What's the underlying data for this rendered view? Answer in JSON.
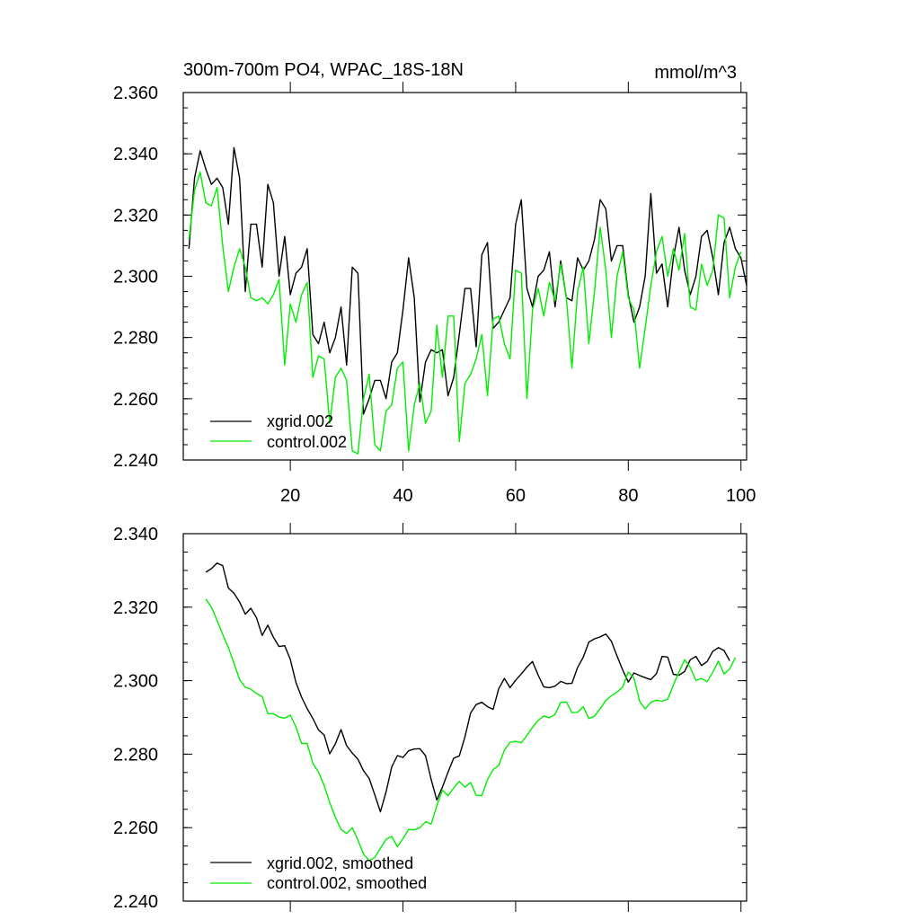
{
  "chart_data": [
    {
      "type": "line",
      "title": "300m-700m PO4, WPAC_18S-18N",
      "units": "mmol/m^3",
      "xlim": [
        1,
        101
      ],
      "ylim": [
        2.24,
        2.36
      ],
      "xticks": [
        20,
        40,
        60,
        80,
        100
      ],
      "yticks": [
        2.24,
        2.26,
        2.28,
        2.3,
        2.32,
        2.34,
        2.36
      ],
      "ytick_labels": [
        "2.240",
        "2.260",
        "2.280",
        "2.300",
        "2.320",
        "2.340",
        "2.360"
      ],
      "xtick_labels": [
        "20",
        "40",
        "60",
        "80",
        "100"
      ],
      "legend_position": "bottom-left",
      "series": [
        {
          "name": "xgrid.002",
          "color": "#000000",
          "x_start": 2,
          "values": [
            2.309,
            2.332,
            2.341,
            2.335,
            2.33,
            2.332,
            2.329,
            2.317,
            2.342,
            2.332,
            2.295,
            2.317,
            2.317,
            2.303,
            2.33,
            2.324,
            2.3,
            2.313,
            2.294,
            2.301,
            2.303,
            2.309,
            2.281,
            2.278,
            2.285,
            2.275,
            2.28,
            2.29,
            2.271,
            2.303,
            2.301,
            2.255,
            2.26,
            2.266,
            2.266,
            2.26,
            2.272,
            2.275,
            2.289,
            2.306,
            2.293,
            2.259,
            2.272,
            2.276,
            2.275,
            2.276,
            2.261,
            2.267,
            2.281,
            2.296,
            2.296,
            2.277,
            2.307,
            2.311,
            2.283,
            2.285,
            2.289,
            2.293,
            2.317,
            2.325,
            2.296,
            2.29,
            2.3,
            2.302,
            2.308,
            2.29,
            2.305,
            2.293,
            2.292,
            2.306,
            2.302,
            2.305,
            2.312,
            2.325,
            2.322,
            2.305,
            2.31,
            2.31,
            2.294,
            2.285,
            2.29,
            2.3,
            2.327,
            2.301,
            2.304,
            2.29,
            2.306,
            2.316,
            2.302,
            2.294,
            2.3,
            2.313,
            2.315,
            2.306,
            2.294,
            2.311,
            2.316,
            2.309,
            2.306,
            2.297
          ]
        },
        {
          "name": "control.002",
          "color": "#00ee00",
          "x_start": 2,
          "values": [
            2.312,
            2.328,
            2.334,
            2.324,
            2.323,
            2.329,
            2.31,
            2.295,
            2.303,
            2.309,
            2.303,
            2.293,
            2.292,
            2.293,
            2.291,
            2.294,
            2.299,
            2.271,
            2.291,
            2.285,
            2.294,
            2.298,
            2.267,
            2.274,
            2.273,
            2.252,
            2.267,
            2.27,
            2.266,
            2.243,
            2.242,
            2.26,
            2.268,
            2.245,
            2.243,
            2.256,
            2.258,
            2.27,
            2.272,
            2.243,
            2.258,
            2.265,
            2.252,
            2.256,
            2.284,
            2.267,
            2.287,
            2.287,
            2.246,
            2.265,
            2.268,
            2.273,
            2.281,
            2.261,
            2.286,
            2.287,
            2.278,
            2.273,
            2.302,
            2.301,
            2.26,
            2.289,
            2.296,
            2.287,
            2.298,
            2.292,
            2.304,
            2.293,
            2.27,
            2.295,
            2.303,
            2.278,
            2.295,
            2.316,
            2.302,
            2.28,
            2.3,
            2.308,
            2.293,
            2.289,
            2.27,
            2.283,
            2.297,
            2.308,
            2.313,
            2.3,
            2.309,
            2.302,
            2.314,
            2.29,
            2.289,
            2.304,
            2.297,
            2.302,
            2.32,
            2.319,
            2.293,
            2.303,
            2.308
          ]
        }
      ]
    },
    {
      "type": "line",
      "title": "",
      "xlim": [
        1,
        101
      ],
      "ylim": [
        2.24,
        2.34
      ],
      "xticks": [
        20,
        40,
        60,
        80,
        100
      ],
      "yticks": [
        2.24,
        2.26,
        2.28,
        2.3,
        2.32,
        2.34
      ],
      "ytick_labels": [
        "2.240",
        "2.260",
        "2.280",
        "2.300",
        "2.320",
        "2.340"
      ],
      "legend_position": "bottom-left",
      "series": [
        {
          "name": "xgrid.002, smoothed",
          "color": "#000000",
          "x_start": 5,
          "values": [
            2.3295,
            2.3305,
            2.332,
            2.3313,
            2.3252,
            2.3238,
            2.3214,
            2.3181,
            2.3197,
            2.3171,
            2.3123,
            2.3151,
            2.3118,
            2.3093,
            2.3095,
            2.3058,
            2.2995,
            2.2955,
            2.2924,
            2.2897,
            2.2866,
            2.2852,
            2.2801,
            2.2828,
            2.2867,
            2.2823,
            2.2803,
            2.2786,
            2.2755,
            2.2734,
            2.2689,
            2.2643,
            2.2697,
            2.2765,
            2.2796,
            2.2791,
            2.2809,
            2.2814,
            2.2815,
            2.2796,
            2.2731,
            2.2675,
            2.271,
            2.2751,
            2.2789,
            2.2795,
            2.2847,
            2.2912,
            2.2935,
            2.2941,
            2.2929,
            2.2922,
            2.2978,
            2.3006,
            2.2981,
            2.3001,
            2.3018,
            2.3037,
            2.3052,
            2.3015,
            2.2983,
            2.2981,
            2.2985,
            2.2998,
            2.2992,
            2.2993,
            2.3036,
            2.3064,
            2.3105,
            2.3114,
            2.3119,
            2.3127,
            2.3107,
            2.3067,
            2.3029,
            2.2996,
            2.3021,
            2.3014,
            2.3008,
            2.3003,
            2.3019,
            2.3066,
            2.3064,
            2.3017,
            2.3015,
            2.3025,
            2.3057,
            2.3066,
            2.3041,
            2.3052,
            2.308,
            2.309,
            2.3082,
            2.3054
          ]
        },
        {
          "name": "control.002, smoothed",
          "color": "#00ee00",
          "x_start": 5,
          "values": [
            2.3222,
            2.32,
            2.3164,
            2.3126,
            2.309,
            2.3048,
            2.3003,
            2.2982,
            2.2977,
            2.2965,
            2.2957,
            2.291,
            2.291,
            2.2901,
            2.2898,
            2.2906,
            2.2874,
            2.2829,
            2.2829,
            2.2775,
            2.2751,
            2.2715,
            2.2668,
            2.2628,
            2.2595,
            2.2584,
            2.26,
            2.2566,
            2.2528,
            2.251,
            2.2519,
            2.2544,
            2.2568,
            2.2576,
            2.2548,
            2.257,
            2.2595,
            2.2594,
            2.26,
            2.2616,
            2.261,
            2.2659,
            2.2702,
            2.2687,
            2.2708,
            2.2726,
            2.271,
            2.2723,
            2.2688,
            2.2687,
            2.2731,
            2.2758,
            2.2769,
            2.2811,
            2.2832,
            2.2835,
            2.2831,
            2.2851,
            2.2873,
            2.2892,
            2.2904,
            2.2899,
            2.2908,
            2.2941,
            2.2942,
            2.2913,
            2.2914,
            2.2929,
            2.2897,
            2.2903,
            2.2924,
            2.2946,
            2.2959,
            2.2969,
            2.2983,
            2.3024,
            2.3007,
            2.2944,
            2.2923,
            2.2941,
            2.2947,
            2.2944,
            2.295,
            2.2988,
            2.3024,
            2.3057,
            2.3036,
            2.3,
            2.3006,
            2.2997,
            2.3023,
            2.3053,
            2.3018,
            2.3032,
            2.3063
          ]
        }
      ]
    }
  ]
}
